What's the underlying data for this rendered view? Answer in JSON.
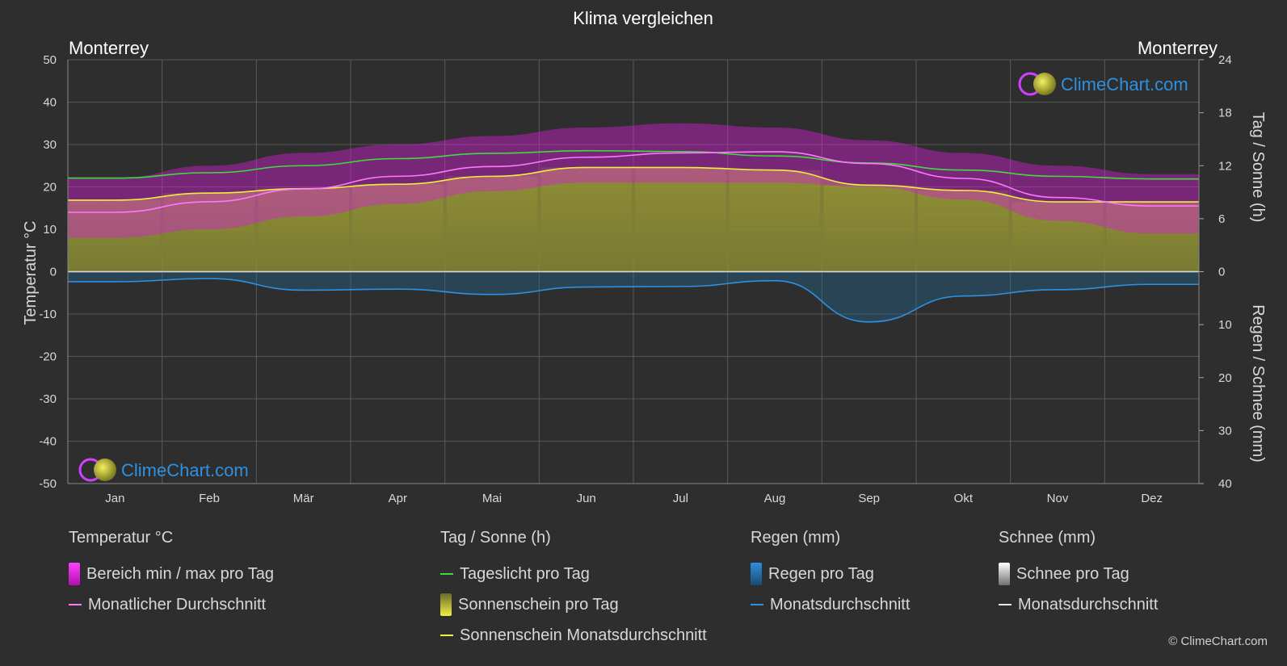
{
  "title": "Klima vergleichen",
  "location_left": "Monterrey",
  "location_right": "Monterrey",
  "watermark": "ClimeChart.com",
  "copyright": "© ClimeChart.com",
  "colors": {
    "background": "#2e2e2e",
    "temp_range": "#d21fd2",
    "temp_avg": "#ff77ff",
    "daylight": "#3ddc3d",
    "sunshine_fill": "#8a8a35",
    "sunshine_avg": "#f0f03c",
    "rain_fill": "#1f6f9f",
    "rain_avg": "#2e90e0",
    "snow": "#d8d8d8",
    "watermark_text": "#2e90e0"
  },
  "legend": {
    "temperature": {
      "title": "Temperatur °C",
      "items": [
        {
          "label": "Bereich min / max pro Tag",
          "icon": "magenta-bar-swatch"
        },
        {
          "label": "Monatlicher Durchschnitt",
          "icon": "pink-line-swatch"
        }
      ]
    },
    "sun": {
      "title": "Tag / Sonne (h)",
      "items": [
        {
          "label": "Tageslicht pro Tag",
          "icon": "green-line-swatch"
        },
        {
          "label": "Sonnenschein pro Tag",
          "icon": "yellow-bar-swatch"
        },
        {
          "label": "Sonnenschein Monatsdurchschnitt",
          "icon": "yellow-line-swatch"
        }
      ]
    },
    "rain": {
      "title": "Regen (mm)",
      "items": [
        {
          "label": "Regen pro Tag",
          "icon": "blue-bar-swatch"
        },
        {
          "label": "Monatsdurchschnitt",
          "icon": "blue-line-swatch"
        }
      ]
    },
    "snow": {
      "title": "Schnee (mm)",
      "items": [
        {
          "label": "Schnee pro Tag",
          "icon": "white-bar-swatch"
        },
        {
          "label": "Monatsdurchschnitt",
          "icon": "white-line-swatch"
        }
      ]
    }
  },
  "chart_data": {
    "type": "line",
    "categories": [
      "Jan",
      "Feb",
      "Mär",
      "Apr",
      "Mai",
      "Jun",
      "Jul",
      "Aug",
      "Sep",
      "Okt",
      "Nov",
      "Dez"
    ],
    "y_left": {
      "label": "Temperatur °C",
      "range": [
        -50,
        50
      ],
      "ticks": [
        50,
        40,
        30,
        20,
        10,
        0,
        -10,
        -20,
        -30,
        -40,
        -50
      ]
    },
    "y_right_top": {
      "label": "Tag / Sonne (h)",
      "range": [
        0,
        24
      ],
      "ticks": [
        24,
        18,
        12,
        6,
        0
      ]
    },
    "y_right_bottom": {
      "label": "Regen / Schnee (mm)",
      "range": [
        0,
        40
      ],
      "ticks": [
        0,
        10,
        20,
        30,
        40
      ]
    },
    "grid": true,
    "series": [
      {
        "name": "Tageslicht pro Tag",
        "unit": "h",
        "axis": "right_top",
        "values": [
          10.6,
          11.2,
          12.0,
          12.8,
          13.4,
          13.7,
          13.6,
          13.1,
          12.3,
          11.5,
          10.8,
          10.5
        ]
      },
      {
        "name": "Sonnenschein Monatsdurchschnitt",
        "unit": "h",
        "axis": "right_top",
        "values": [
          8.1,
          8.9,
          9.4,
          9.9,
          10.8,
          11.8,
          11.8,
          11.5,
          9.8,
          9.2,
          7.9,
          7.9
        ]
      },
      {
        "name": "Monatlicher Durchschnitt",
        "unit": "°C",
        "axis": "left",
        "values": [
          14.0,
          16.5,
          19.5,
          22.5,
          24.8,
          27.0,
          28.0,
          28.3,
          25.5,
          22.0,
          17.5,
          15.5
        ]
      },
      {
        "name": "Regen Monatsdurchschnitt",
        "unit": "mm",
        "axis": "right_bottom",
        "values": [
          1.9,
          1.3,
          3.5,
          3.3,
          4.3,
          2.9,
          2.8,
          1.7,
          9.5,
          4.6,
          3.4,
          2.4
        ]
      },
      {
        "name": "Bereich max pro Tag",
        "unit": "°C",
        "axis": "left",
        "values": [
          22,
          25,
          28,
          30,
          32,
          34,
          35,
          34,
          31,
          28,
          25,
          23
        ]
      },
      {
        "name": "Bereich min pro Tag",
        "unit": "°C",
        "axis": "left",
        "values": [
          8,
          10,
          13,
          16,
          19,
          21,
          21,
          21,
          20,
          17,
          12,
          9
        ]
      }
    ]
  }
}
